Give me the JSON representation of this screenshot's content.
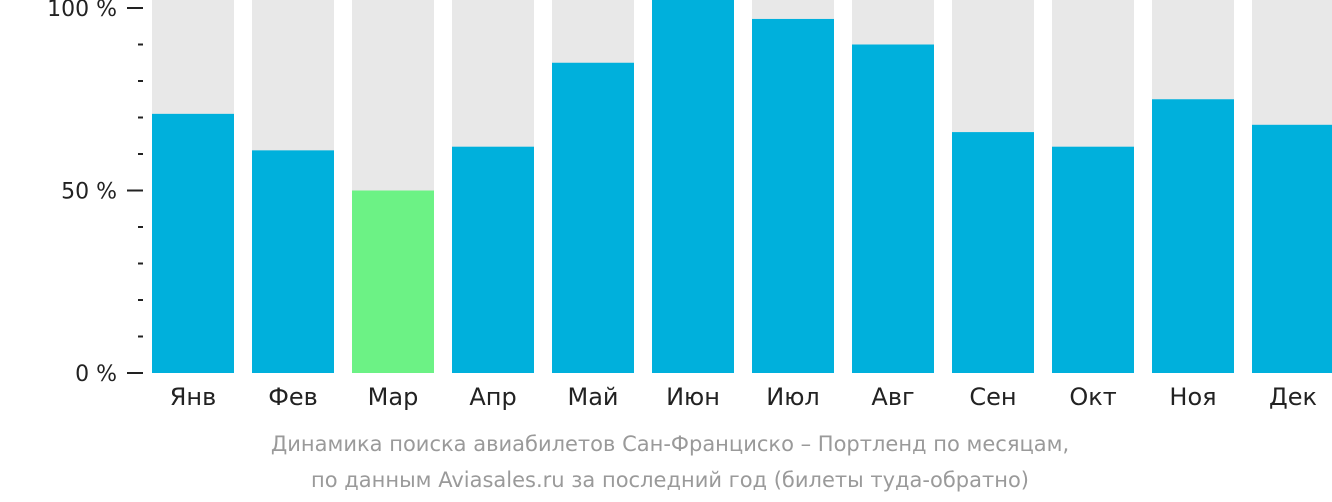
{
  "colors": {
    "background_bar": "#e8e8e8",
    "bar": "#00b0dc",
    "highlight_bar": "#6cf285",
    "axis": "#222222",
    "caption": "#9a9a9a"
  },
  "chart_data": {
    "type": "bar",
    "categories": [
      "Янв",
      "Фев",
      "Мар",
      "Апр",
      "Май",
      "Июн",
      "Июл",
      "Авг",
      "Сен",
      "Окт",
      "Ноя",
      "Дек"
    ],
    "values": [
      71,
      61,
      50,
      62,
      85,
      105,
      97,
      90,
      66,
      62,
      75,
      68
    ],
    "highlight_index": 2,
    "ylim": [
      0,
      100
    ],
    "yticks": [
      {
        "value": 100,
        "label": "100 %"
      },
      {
        "value": 50,
        "label": "50 %"
      },
      {
        "value": 0,
        "label": "0 %"
      }
    ],
    "minor_ticks": [
      10,
      20,
      30,
      40,
      60,
      70,
      80,
      90
    ],
    "grid": false,
    "title": "Динамика поиска авиабилетов Сан-Франциско – Портленд по месяцам,",
    "subtitle": "по данным Aviasales.ru за последний год (билеты туда-обратно)"
  }
}
